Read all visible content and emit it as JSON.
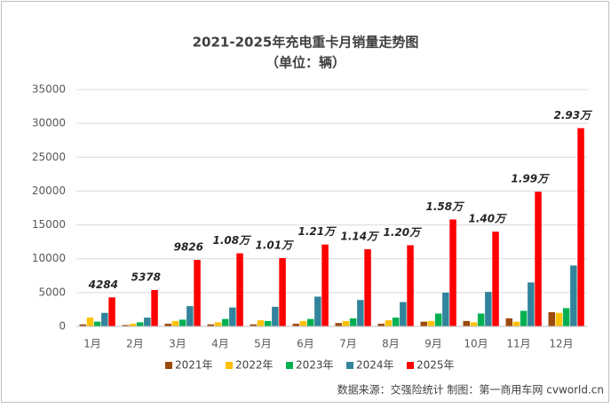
{
  "chart_data": {
    "type": "bar",
    "title": "2021-2025年充电重卡月销量走势图",
    "subtitle": "（单位：辆）",
    "source": "数据来源：交强险统计 制图：第一商用车网 cvworld.cn",
    "categories": [
      "1月",
      "2月",
      "3月",
      "4月",
      "5月",
      "6月",
      "7月",
      "8月",
      "9月",
      "10月",
      "11月",
      "12月"
    ],
    "series": [
      {
        "name": "2021年",
        "color": "#9c4a0c",
        "values": [
          300,
          200,
          400,
          300,
          300,
          400,
          500,
          400,
          700,
          800,
          1200,
          2100
        ]
      },
      {
        "name": "2022年",
        "color": "#ffc000",
        "values": [
          1300,
          400,
          800,
          600,
          900,
          800,
          800,
          900,
          800,
          600,
          700,
          2000
        ]
      },
      {
        "name": "2023年",
        "color": "#00b050",
        "values": [
          700,
          600,
          1000,
          1100,
          800,
          1100,
          1200,
          1300,
          1900,
          1900,
          2300,
          2700
        ]
      },
      {
        "name": "2024年",
        "color": "#31849b",
        "values": [
          2000,
          1300,
          3000,
          2800,
          2900,
          4400,
          3900,
          3600,
          5000,
          5100,
          6500,
          9000
        ]
      },
      {
        "name": "2025年",
        "color": "#ff0000",
        "values": [
          4284,
          5378,
          9826,
          10800,
          10100,
          12100,
          11400,
          12000,
          15800,
          14000,
          19900,
          29300
        ],
        "value_labels": [
          "4284",
          "5378",
          "9826",
          "1.08万",
          "1.01万",
          "1.21万",
          "1.14万",
          "1.20万",
          "1.58万",
          "1.40万",
          "1.99万",
          "2.93万"
        ]
      }
    ],
    "ylim": [
      0,
      35000
    ],
    "yticks": [
      0,
      5000,
      10000,
      15000,
      20000,
      25000,
      30000,
      35000
    ],
    "grid": true,
    "legend": "bottom"
  }
}
